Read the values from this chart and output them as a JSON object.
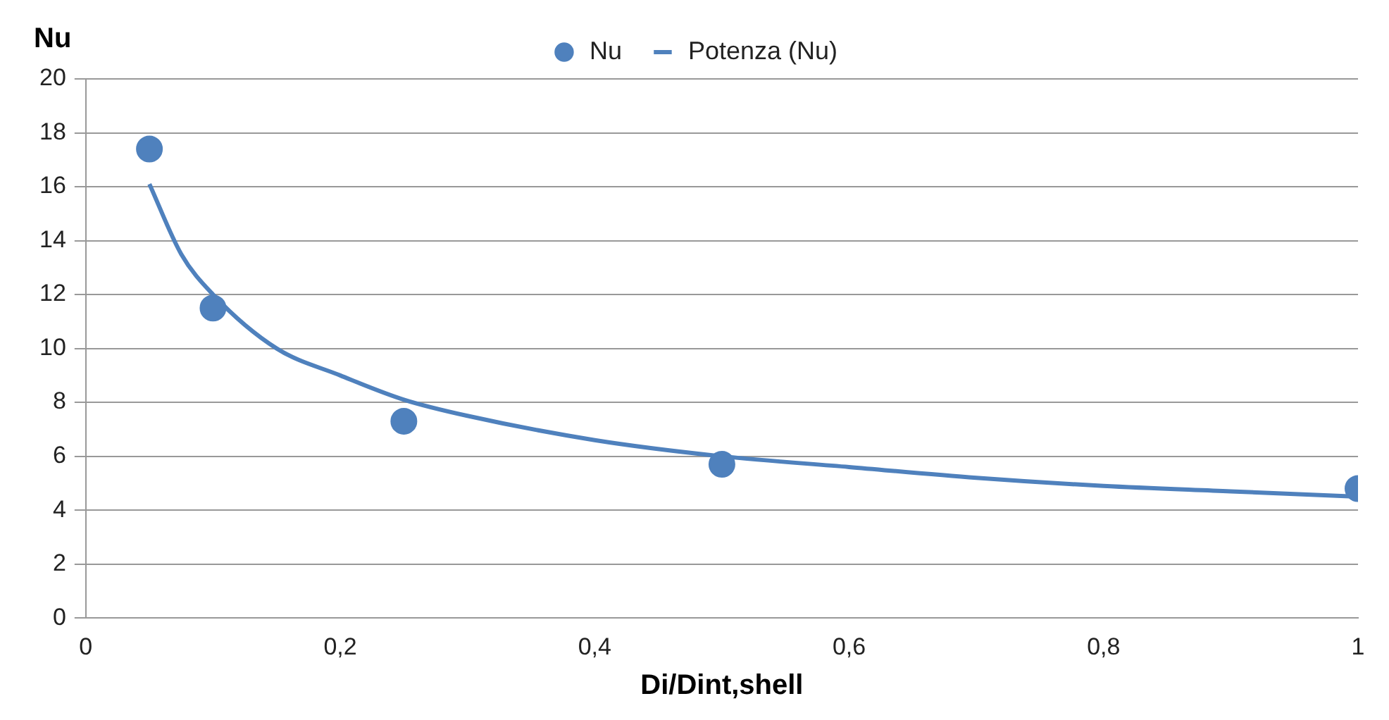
{
  "chart_data": {
    "type": "scatter",
    "xlabel": "Di/Dint,shell",
    "ylabel": "Nu",
    "xlim": [
      0,
      1
    ],
    "xticks": [
      0,
      {
        "value": 0.2,
        "label": "0,2"
      },
      {
        "value": 0.4,
        "label": "0,4"
      },
      {
        "value": 0.6,
        "label": "0,6"
      },
      {
        "value": 0.8,
        "label": "0,8"
      },
      1
    ],
    "ylim": [
      0,
      20
    ],
    "yticks": [
      0,
      2,
      4,
      6,
      8,
      10,
      12,
      14,
      16,
      18,
      20
    ],
    "grid": "y",
    "legend": "top",
    "series": [
      {
        "name": "Nu",
        "type": "scatter",
        "color": "#4f81bd",
        "marker": "circle",
        "x": [
          0.05,
          0.1,
          0.25,
          0.5,
          1
        ],
        "values": [
          17.4,
          11.5,
          7.3,
          5.7,
          4.8
        ]
      },
      {
        "name": "Potenza (Nu)",
        "type": "line",
        "color": "#4f81bd",
        "marker": "none",
        "x": [
          0.05,
          0.075,
          0.1,
          0.15,
          0.2,
          0.25,
          0.3,
          0.4,
          0.5,
          0.6,
          0.7,
          0.8,
          0.9,
          1
        ],
        "values": [
          16.1,
          13.5,
          12.0,
          10.0,
          9.0,
          8.1,
          7.5,
          6.6,
          6.0,
          5.6,
          5.2,
          4.9,
          4.7,
          4.5
        ]
      }
    ]
  }
}
